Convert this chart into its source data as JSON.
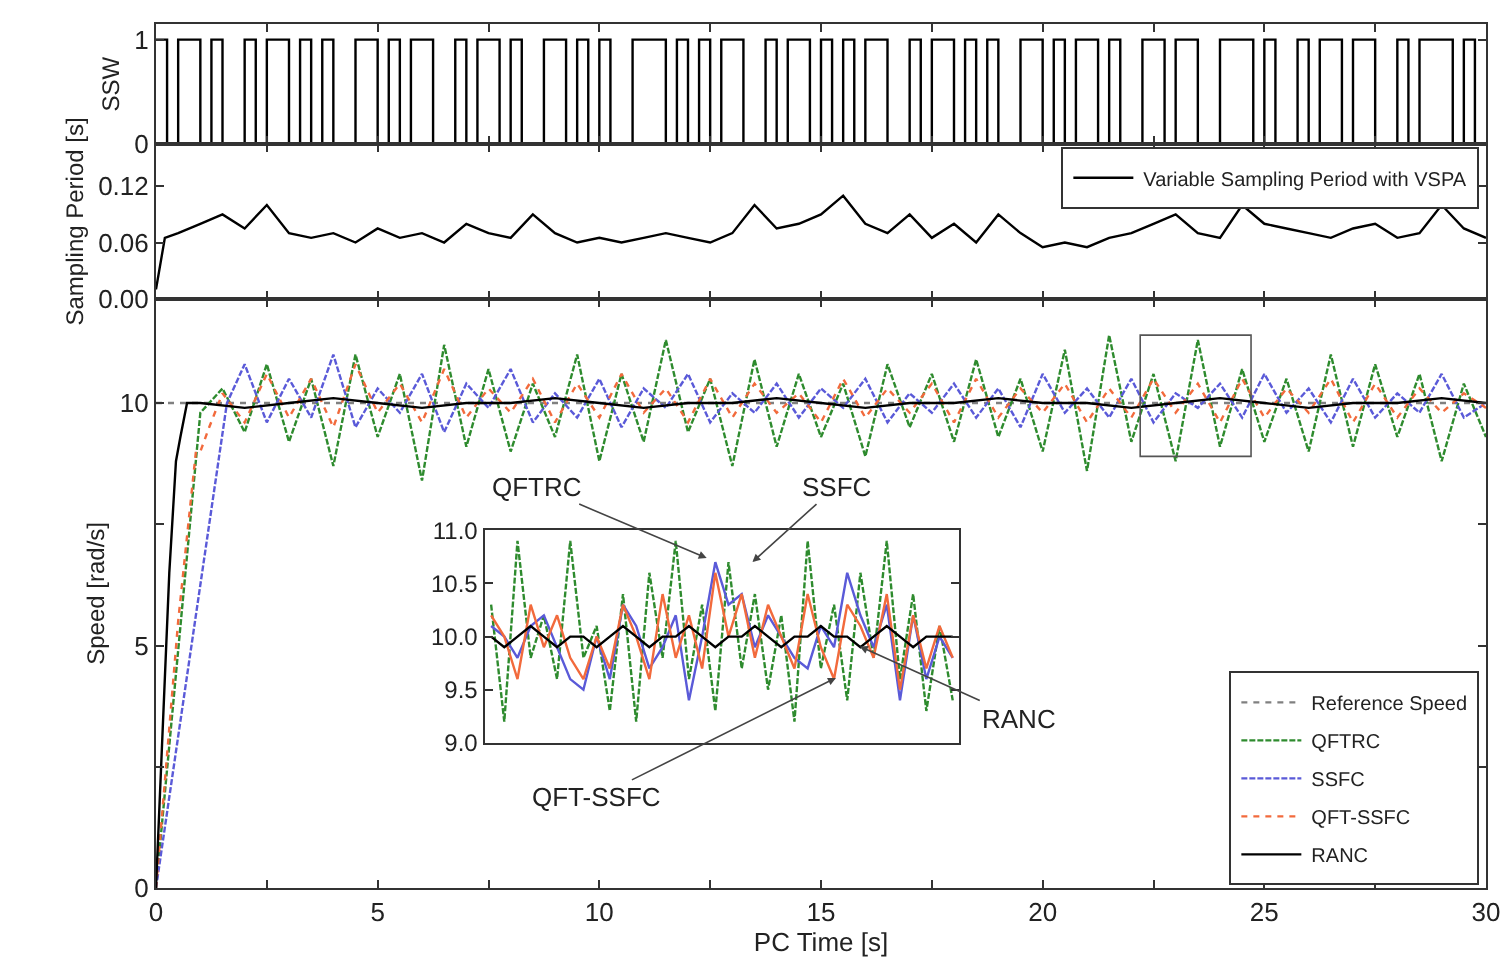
{
  "chart_data": [
    {
      "type": "step",
      "ylabel": "SSW",
      "xlim": [
        0,
        30
      ],
      "ylim": [
        0,
        1.15
      ],
      "yticks": [
        0,
        1
      ],
      "xticks": [
        0,
        {
          "value": 2.5,
          "label": null
        },
        5,
        {
          "value": 7.5,
          "label": null
        },
        10,
        {
          "value": 12.5,
          "label": null
        },
        15,
        {
          "value": 17.5,
          "label": null
        },
        20,
        {
          "value": 22.5,
          "label": null
        },
        25,
        {
          "value": 27.5,
          "label": null
        },
        30
      ],
      "tick_labels": "y",
      "marker": "none",
      "series": [
        {
          "color": "#000000",
          "line_style": "solid",
          "x": [
            0,
            0.25,
            0.5,
            0.75,
            1,
            1.25,
            1.5,
            1.75,
            2,
            2.25,
            2.5,
            2.75,
            3,
            3.25,
            3.5,
            3.75,
            4,
            4.25,
            4.5,
            4.75,
            5,
            5.25,
            5.5,
            5.75,
            6,
            6.25,
            6.5,
            6.75,
            7,
            7.25,
            7.5,
            7.75,
            8,
            8.25,
            8.5,
            8.75,
            9,
            9.25,
            9.5,
            9.75,
            10,
            10.25,
            10.5,
            10.75,
            11,
            11.25,
            11.5,
            11.75,
            12,
            12.25,
            12.5,
            12.75,
            13,
            13.25,
            13.5,
            13.75,
            14,
            14.25,
            14.5,
            14.75,
            15,
            15.25,
            15.5,
            15.75,
            16,
            16.25,
            16.5,
            16.75,
            17,
            17.25,
            17.5,
            17.75,
            18,
            18.25,
            18.5,
            18.75,
            19,
            19.25,
            19.5,
            19.75,
            20,
            20.25,
            20.5,
            20.75,
            21,
            21.25,
            21.5,
            21.75,
            22,
            22.25,
            22.5,
            22.75,
            23,
            23.25,
            23.5,
            23.75,
            24,
            24.25,
            24.5,
            24.75,
            25,
            25.25,
            25.5,
            25.75,
            26,
            26.25,
            26.5,
            26.75,
            27,
            27.25,
            27.5,
            27.75,
            28,
            28.25,
            28.5,
            28.75,
            29,
            29.25,
            29.5,
            29.75,
            30
          ],
          "values": [
            1,
            0,
            1,
            1,
            0,
            1,
            0,
            0,
            1,
            0,
            1,
            1,
            0,
            1,
            0,
            1,
            0,
            0,
            1,
            1,
            0,
            1,
            0,
            1,
            1,
            0,
            0,
            1,
            0,
            1,
            1,
            0,
            1,
            0,
            0,
            1,
            1,
            0,
            1,
            0,
            1,
            0,
            0,
            1,
            1,
            1,
            0,
            1,
            0,
            1,
            0,
            1,
            1,
            0,
            0,
            1,
            0,
            1,
            1,
            0,
            1,
            0,
            1,
            0,
            1,
            1,
            0,
            0,
            1,
            0,
            1,
            1,
            0,
            1,
            0,
            1,
            0,
            0,
            1,
            1,
            0,
            1,
            0,
            1,
            1,
            0,
            1,
            0,
            0,
            1,
            1,
            0,
            1,
            1,
            0,
            0,
            1,
            1,
            1,
            0,
            1,
            0,
            0,
            1,
            0,
            1,
            1,
            0,
            1,
            1,
            0,
            0,
            1,
            0,
            1,
            1,
            1,
            0,
            1,
            0,
            0
          ]
        }
      ]
    },
    {
      "type": "line",
      "ylabel": "Sampling Period [s]",
      "xlim": [
        0,
        30
      ],
      "ylim": [
        0,
        0.165
      ],
      "yticks": [
        {
          "value": 0,
          "label": "0.00"
        },
        0.06,
        0.12
      ],
      "xticks": [
        0,
        {
          "value": 2.5,
          "label": null
        },
        5,
        {
          "value": 7.5,
          "label": null
        },
        10,
        {
          "value": 12.5,
          "label": null
        },
        15,
        {
          "value": 17.5,
          "label": null
        },
        20,
        {
          "value": 22.5,
          "label": null
        },
        25,
        {
          "value": 27.5,
          "label": null
        },
        30
      ],
      "tick_labels": "y",
      "marker": "none",
      "legend": "top right",
      "series": [
        {
          "name": "Variable Sampling Period with VSPA",
          "color": "#000000",
          "line_style": "solid",
          "x": [
            0,
            0.2,
            0.5,
            1,
            1.5,
            2,
            2.5,
            3,
            3.5,
            4,
            4.5,
            5,
            5.5,
            6,
            6.5,
            7,
            7.5,
            8,
            8.5,
            9,
            9.5,
            10,
            10.5,
            11,
            11.5,
            12,
            12.5,
            13,
            13.5,
            14,
            14.5,
            15,
            15.5,
            16,
            16.5,
            17,
            17.5,
            18,
            18.5,
            19,
            19.5,
            20,
            20.5,
            21,
            21.5,
            22,
            22.5,
            23,
            23.5,
            24,
            24.5,
            25,
            25.5,
            26,
            26.5,
            27,
            27.5,
            28,
            28.5,
            29,
            29.5,
            30
          ],
          "values": [
            0.01,
            0.065,
            0.07,
            0.08,
            0.09,
            0.075,
            0.1,
            0.07,
            0.065,
            0.07,
            0.06,
            0.075,
            0.065,
            0.07,
            0.06,
            0.08,
            0.07,
            0.065,
            0.09,
            0.07,
            0.06,
            0.065,
            0.06,
            0.065,
            0.07,
            0.065,
            0.06,
            0.07,
            0.1,
            0.075,
            0.08,
            0.09,
            0.11,
            0.08,
            0.07,
            0.09,
            0.065,
            0.08,
            0.06,
            0.09,
            0.07,
            0.055,
            0.06,
            0.055,
            0.065,
            0.07,
            0.08,
            0.09,
            0.07,
            0.065,
            0.1,
            0.08,
            0.075,
            0.07,
            0.065,
            0.075,
            0.08,
            0.065,
            0.07,
            0.1,
            0.075,
            0.065
          ]
        }
      ]
    },
    {
      "type": "line",
      "xlabel": "PC Time [s]",
      "ylabel": "Speed [rad/s]",
      "xlim": [
        0,
        30
      ],
      "ylim": [
        0,
        12.15
      ],
      "yticks": [
        0,
        {
          "value": 2.5,
          "label": null
        },
        5,
        {
          "value": 7.5,
          "label": null
        },
        10
      ],
      "xticks": [
        0,
        {
          "value": 2.5,
          "label": null
        },
        5,
        {
          "value": 7.5,
          "label": null
        },
        10,
        {
          "value": 12.5,
          "label": null
        },
        15,
        {
          "value": 17.5,
          "label": null
        },
        20,
        {
          "value": 22.5,
          "label": null
        },
        25,
        {
          "value": 27.5,
          "label": null
        },
        30
      ],
      "marker": "none",
      "legend": "bottom right",
      "series": [
        {
          "name": "Reference Speed",
          "color": "#808080",
          "line_style": "dotted",
          "x": [
            0,
            30
          ],
          "values": [
            10,
            10
          ]
        },
        {
          "name": "QFTRC",
          "color": "#2e8b2e",
          "line_style": "dashed",
          "x": [
            0,
            1,
            1.5,
            2,
            2.5,
            3,
            3.5,
            4,
            4.5,
            5,
            5.5,
            6,
            6.5,
            7,
            7.5,
            8,
            8.5,
            9,
            9.5,
            10,
            10.5,
            11,
            11.5,
            12,
            12.5,
            13,
            13.5,
            14,
            14.5,
            15,
            15.5,
            16,
            16.5,
            17,
            17.5,
            18,
            18.5,
            19,
            19.5,
            20,
            20.5,
            21,
            21.5,
            22,
            22.5,
            23,
            23.5,
            24,
            24.5,
            25,
            25.5,
            26,
            26.5,
            27,
            27.5,
            28,
            28.5,
            29,
            29.5,
            30
          ],
          "values": [
            0,
            9.8,
            10.3,
            9.4,
            10.8,
            9.2,
            10.5,
            8.7,
            11.0,
            9.3,
            10.6,
            8.4,
            11.2,
            9.1,
            10.7,
            9.0,
            10.4,
            9.3,
            11.0,
            8.8,
            10.6,
            9.2,
            11.3,
            9.4,
            10.5,
            8.7,
            10.9,
            9.1,
            10.6,
            9.3,
            10.4,
            8.9,
            10.8,
            9.5,
            10.6,
            9.2,
            10.9,
            9.3,
            10.5,
            9.0,
            11.1,
            8.6,
            11.4,
            9.2,
            10.6,
            8.8,
            11.3,
            9.1,
            10.7,
            9.2,
            10.5,
            9.0,
            11.0,
            9.1,
            10.8,
            9.3,
            10.6,
            8.8,
            10.4,
            9.3
          ]
        },
        {
          "name": "SSFC",
          "color": "#5a5ad8",
          "line_style": "dashed",
          "x": [
            0,
            1.6,
            2,
            2.5,
            3,
            3.5,
            4,
            4.5,
            5,
            5.5,
            6,
            6.5,
            7,
            7.5,
            8,
            8.5,
            9,
            9.5,
            10,
            10.5,
            11,
            11.5,
            12,
            12.5,
            13,
            13.5,
            14,
            14.5,
            15,
            15.5,
            16,
            16.5,
            17,
            17.5,
            18,
            18.5,
            19,
            19.5,
            20,
            20.5,
            21,
            21.5,
            22,
            22.5,
            23,
            23.5,
            24,
            24.5,
            25,
            25.5,
            26,
            26.5,
            27,
            27.5,
            28,
            28.5,
            29,
            29.5,
            30
          ],
          "values": [
            0,
            10.0,
            10.8,
            9.6,
            10.5,
            9.7,
            11.0,
            9.5,
            10.3,
            9.8,
            10.6,
            9.4,
            10.4,
            9.9,
            10.7,
            9.6,
            10.2,
            9.7,
            10.5,
            9.5,
            10.3,
            9.9,
            10.6,
            9.6,
            10.2,
            9.8,
            10.4,
            9.7,
            10.3,
            9.9,
            10.5,
            9.6,
            10.2,
            9.8,
            10.4,
            9.7,
            10.3,
            9.5,
            10.6,
            9.8,
            10.3,
            9.7,
            10.5,
            9.6,
            10.2,
            9.9,
            10.4,
            9.7,
            10.6,
            9.8,
            10.3,
            9.6,
            10.5,
            9.7,
            10.2,
            9.8,
            10.6,
            9.7,
            10.0
          ]
        },
        {
          "name": "QFT-SSFC",
          "color": "#f26a3c",
          "line_style": "dotted",
          "x": [
            0,
            0.5,
            0.9,
            1,
            1.2,
            1.5,
            2,
            2.5,
            3,
            3.5,
            4,
            4.5,
            5,
            5.5,
            6,
            6.5,
            7,
            7.5,
            8,
            8.5,
            9,
            9.5,
            10,
            10.5,
            11,
            11.5,
            12,
            12.5,
            13,
            13.5,
            14,
            14.5,
            15,
            15.5,
            16,
            16.5,
            17,
            17.5,
            18,
            18.5,
            19,
            19.5,
            20,
            20.5,
            21,
            21.5,
            22,
            22.5,
            23,
            23.5,
            24,
            24.5,
            25,
            25.5,
            26,
            26.5,
            27,
            27.5,
            28,
            28.5,
            29,
            29.5,
            30
          ],
          "values": [
            0,
            5.5,
            9.0,
            9.0,
            9.5,
            10.2,
            9.6,
            10.6,
            9.7,
            10.5,
            9.5,
            10.8,
            9.8,
            10.4,
            9.6,
            10.7,
            9.7,
            10.3,
            9.8,
            10.5,
            9.6,
            10.4,
            9.7,
            10.6,
            9.8,
            10.3,
            9.6,
            10.5,
            9.7,
            10.4,
            9.8,
            10.2,
            9.6,
            10.5,
            9.7,
            10.3,
            9.8,
            10.4,
            9.6,
            10.5,
            9.7,
            10.3,
            9.8,
            10.4,
            9.6,
            10.3,
            9.7,
            10.5,
            9.8,
            10.4,
            9.6,
            10.5,
            9.7,
            10.3,
            9.8,
            10.5,
            9.6,
            10.4,
            9.7,
            10.3,
            9.8,
            10.2,
            9.9
          ]
        },
        {
          "name": "RANC",
          "color": "#000000",
          "line_style": "solid",
          "x": [
            0,
            0.3,
            0.45,
            0.55,
            0.7,
            1,
            2,
            3,
            4,
            5,
            6,
            7,
            8,
            9,
            10,
            11,
            12,
            13,
            14,
            15,
            16,
            17,
            18,
            19,
            20,
            21,
            22,
            23,
            24,
            25,
            26,
            27,
            28,
            29,
            30
          ],
          "values": [
            0,
            6.5,
            8.8,
            9.3,
            10.0,
            10.0,
            9.9,
            10.0,
            10.1,
            10.0,
            9.9,
            10.0,
            10.0,
            10.1,
            10.0,
            9.9,
            10.0,
            10.0,
            10.1,
            10.0,
            9.9,
            10.0,
            10.0,
            10.1,
            10.0,
            10.0,
            9.9,
            10.0,
            10.1,
            10.0,
            9.9,
            10.0,
            10.0,
            10.1,
            10.0
          ]
        }
      ]
    },
    {
      "type": "line",
      "ylim": [
        9,
        11
      ],
      "yticks": [
        {
          "value": 9,
          "label": "9.0"
        },
        9.5,
        {
          "value": 10,
          "label": "10.0"
        },
        10.5,
        {
          "value": 11,
          "label": "11.0"
        }
      ],
      "categories": [
        null,
        null,
        null,
        null,
        null,
        null,
        null,
        null,
        null,
        null,
        null,
        null,
        null,
        null,
        null,
        null,
        null,
        null,
        null,
        null,
        null,
        null,
        null,
        null,
        null,
        null,
        null,
        null,
        null,
        null,
        null,
        null,
        null,
        null,
        null,
        null
      ],
      "tick_labels": "y",
      "marker": "none",
      "annotations": [
        "QFTRC",
        "SSFC",
        "QFT-SSFC",
        "RANC"
      ],
      "series": [
        {
          "color": "#2e8b2e",
          "line_style": "dashed",
          "values": [
            10.3,
            9.2,
            10.9,
            9.8,
            10.2,
            9.6,
            10.9,
            9.8,
            10.1,
            9.3,
            10.4,
            9.2,
            10.6,
            9.8,
            10.9,
            9.6,
            10.3,
            9.3,
            10.7,
            9.7,
            10.4,
            9.5,
            10.2,
            9.2,
            10.9,
            9.7,
            10.3,
            9.4,
            10.6,
            9.8,
            10.9,
            9.6,
            10.4,
            9.3,
            10.1,
            9.4
          ]
        },
        {
          "color": "#5a5ad8",
          "line_style": "solid",
          "values": [
            10.1,
            10.0,
            9.8,
            10.1,
            10.2,
            9.9,
            9.6,
            9.5,
            10.0,
            9.6,
            10.3,
            10.1,
            9.7,
            9.9,
            10.2,
            9.4,
            10.0,
            10.7,
            10.3,
            10.4,
            9.9,
            10.2,
            10.0,
            9.8,
            9.7,
            10.1,
            9.9,
            10.6,
            10.2,
            9.9,
            10.3,
            9.4,
            10.2,
            9.6,
            10.0,
            9.8
          ]
        },
        {
          "color": "#f26a3c",
          "line_style": "solid",
          "values": [
            10.2,
            10.0,
            9.6,
            10.3,
            9.9,
            10.2,
            9.8,
            9.6,
            10.0,
            9.7,
            10.3,
            10.0,
            9.6,
            10.4,
            9.8,
            10.2,
            9.7,
            10.6,
            10.0,
            10.4,
            9.8,
            10.3,
            10.0,
            9.7,
            10.4,
            9.9,
            9.6,
            10.3,
            10.1,
            9.8,
            10.4,
            9.5,
            10.2,
            9.7,
            10.1,
            9.8
          ]
        },
        {
          "color": "#000000",
          "line_style": "solid",
          "values": [
            10.0,
            9.9,
            10.0,
            10.1,
            10.0,
            9.9,
            10.0,
            10.0,
            9.9,
            10.0,
            10.1,
            10.0,
            9.9,
            10.0,
            10.0,
            10.1,
            10.0,
            9.9,
            10.0,
            10.0,
            10.1,
            10.0,
            9.9,
            10.0,
            10.0,
            10.1,
            10.0,
            10.0,
            9.9,
            10.0,
            10.1,
            10.0,
            9.9,
            10.0,
            10.0,
            10.0
          ]
        }
      ]
    }
  ]
}
